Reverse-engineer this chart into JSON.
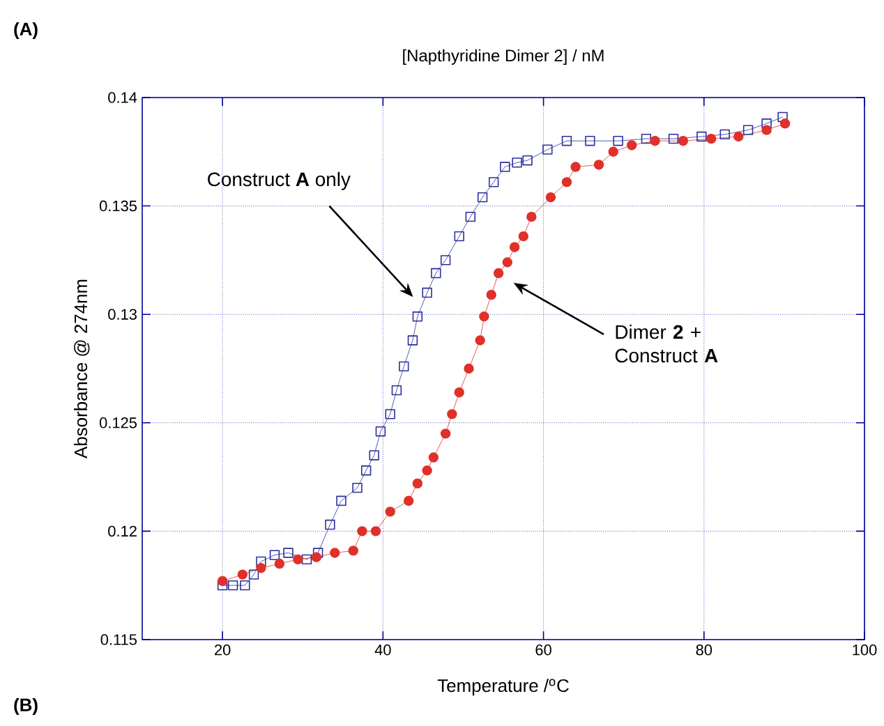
{
  "chart_data": {
    "type": "line",
    "title": "[Napthyridine Dimer 2] / nM",
    "xlabel": "Temperature /$^{o}$C",
    "ylabel": "Absorbance @ 274nm",
    "xlim": [
      10,
      100
    ],
    "xticks": [
      20,
      40,
      60,
      80,
      100
    ],
    "ylim": [
      0.115,
      0.14
    ],
    "yticks": [
      0.115,
      0.12,
      0.125,
      0.13,
      0.135,
      0.14
    ],
    "grid": true,
    "line_style": "solid",
    "series": [
      {
        "color": "#2b2f9c",
        "marker": "square",
        "x": [
          20,
          21.3,
          22.8,
          23.9,
          24.8,
          26.5,
          28.2,
          30.5,
          31.9,
          33.4,
          34.8,
          36.8,
          37.9,
          38.9,
          39.7,
          40.9,
          41.7,
          42.6,
          43.7,
          44.3,
          45.5,
          46.6,
          47.8,
          49.5,
          50.9,
          52.4,
          53.8,
          55.2,
          56.7,
          58,
          60.5,
          62.9,
          65.8,
          69.3,
          72.8,
          76.2,
          79.7,
          82.6,
          85.5,
          87.8,
          89.8
        ],
        "values": [
          0.1175,
          0.1175,
          0.1175,
          0.118,
          0.1186,
          0.1189,
          0.119,
          0.1187,
          0.119,
          0.1203,
          0.1214,
          0.122,
          0.1228,
          0.1235,
          0.1246,
          0.1254,
          0.1265,
          0.1276,
          0.1288,
          0.1299,
          0.131,
          0.1319,
          0.1325,
          0.1336,
          0.1345,
          0.1354,
          0.1361,
          0.1368,
          0.137,
          0.1371,
          0.1376,
          0.138,
          0.138,
          0.138,
          0.1381,
          0.1381,
          0.1382,
          0.1383,
          0.1385,
          0.1388,
          0.1391
        ]
      },
      {
        "color": "#e0302a",
        "marker": "circle",
        "x": [
          20,
          22.5,
          24.8,
          27.1,
          29.4,
          31.7,
          34,
          36.3,
          37.4,
          39.1,
          40.9,
          43.2,
          44.3,
          45.5,
          46.3,
          47.8,
          48.6,
          49.5,
          50.7,
          52.1,
          52.6,
          53.5,
          54.4,
          55.5,
          56.4,
          57.5,
          58.5,
          60.9,
          62.9,
          64,
          66.9,
          68.7,
          71,
          73.9,
          77.4,
          80.9,
          84.3,
          87.8,
          90.1
        ],
        "values": [
          0.1177,
          0.118,
          0.1183,
          0.1185,
          0.1187,
          0.1188,
          0.119,
          0.1191,
          0.12,
          0.12,
          0.1209,
          0.1214,
          0.1222,
          0.1228,
          0.1234,
          0.1245,
          0.1254,
          0.1264,
          0.1275,
          0.1288,
          0.1299,
          0.1309,
          0.1319,
          0.1324,
          0.1331,
          0.1336,
          0.1345,
          0.1354,
          0.1361,
          0.1368,
          0.1369,
          0.1375,
          0.1378,
          0.138,
          0.138,
          0.1381,
          0.1382,
          0.1385,
          0.1388
        ]
      }
    ],
    "annotations": [
      "Construct **A** only",
      "Dimer **2** + Construct **A**",
      "(A)",
      "(B)"
    ]
  }
}
